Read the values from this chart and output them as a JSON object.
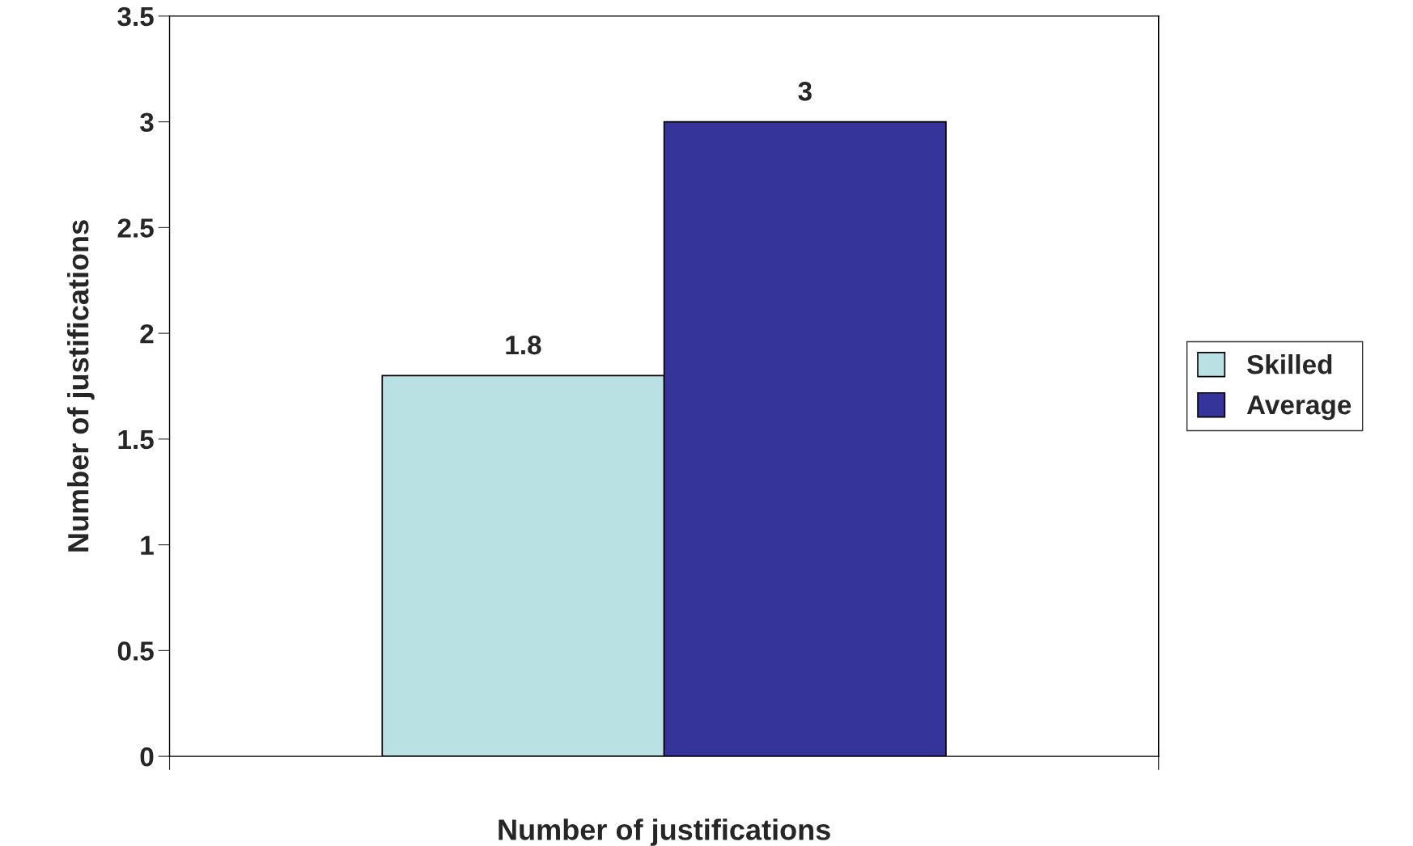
{
  "chart_data": {
    "type": "bar",
    "xlabel": "Number of justifications",
    "ylabel": "Number of justifications",
    "categories": [
      null
    ],
    "series": [
      {
        "name": "Skilled",
        "color": "#b9e0e2",
        "values": [
          1.8
        ]
      },
      {
        "name": "Average",
        "color": "#35349a",
        "values": [
          3
        ]
      }
    ],
    "ylim": [
      0,
      3.5
    ],
    "yticks": [
      0,
      0.5,
      1,
      1.5,
      2,
      2.5,
      3,
      3.5
    ],
    "data_labels": true,
    "grid": false,
    "legend": "right"
  }
}
